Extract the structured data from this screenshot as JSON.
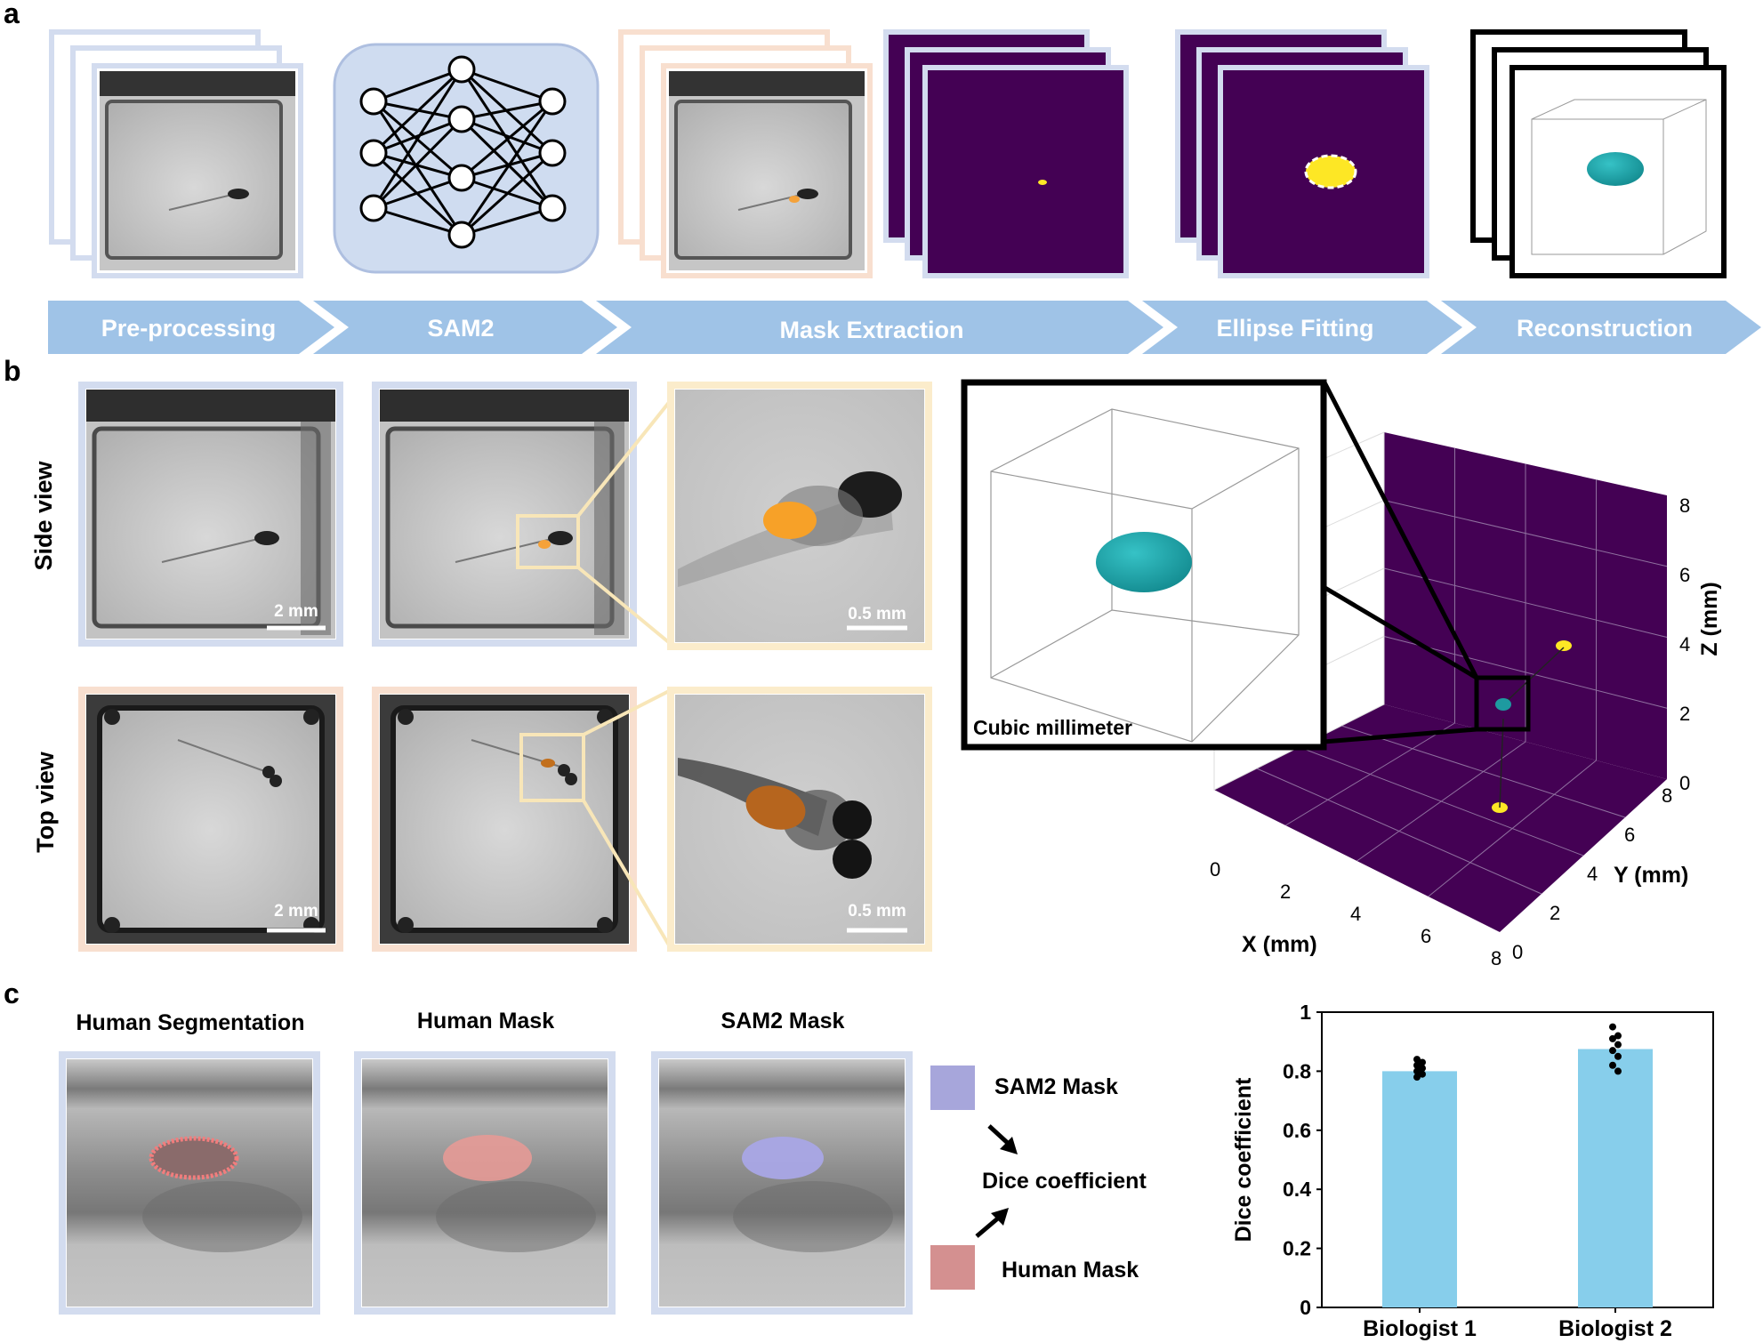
{
  "panels": {
    "a": "a",
    "b": "b",
    "c": "c"
  },
  "pipeline": {
    "steps": [
      "Pre-processing",
      "SAM2",
      "Mask Extraction",
      "Ellipse Fitting",
      "Reconstruction"
    ],
    "colors": {
      "arrow": "#9fc3e7",
      "frame_blue": "#d3dcef",
      "frame_orange": "#f8dfcf",
      "mask_bg": "#440154",
      "mask_yellow": "#fde725",
      "teal": "#1e9aa0",
      "nn_fill": "#cfdcf0"
    }
  },
  "panel_b": {
    "row_labels": {
      "side": "Side view",
      "top": "Top view"
    },
    "scale_bars": {
      "two_mm": "2 mm",
      "half_mm": "0.5 mm"
    },
    "inset_label": "Cubic millimeter",
    "axes": {
      "x_label": "X (mm)",
      "y_label": "Y (mm)",
      "z_label": "Z (mm)",
      "x_ticks": [
        "0",
        "2",
        "4",
        "6",
        "8"
      ],
      "y_ticks": [
        "0",
        "2",
        "4",
        "6",
        "8"
      ],
      "z_ticks": [
        "0",
        "2",
        "4",
        "6",
        "8"
      ]
    }
  },
  "panel_c": {
    "titles": {
      "human_seg": "Human Segmentation",
      "human_mask": "Human Mask",
      "sam2_mask": "SAM2 Mask"
    },
    "legend": {
      "sam2": "SAM2 Mask",
      "dice": "Dice coefficient",
      "human": "Human Mask"
    },
    "colors": {
      "sam2": "#a7a6db",
      "human": "#d49090",
      "bar": "#87ceeb"
    }
  },
  "chart_data": {
    "type": "bar",
    "categories": [
      "Biologist 1",
      "Biologist 2"
    ],
    "values": [
      0.8,
      0.875
    ],
    "points": [
      [
        0.84,
        0.83,
        0.82,
        0.81,
        0.8,
        0.79,
        0.78
      ],
      [
        0.95,
        0.92,
        0.91,
        0.89,
        0.87,
        0.85,
        0.82,
        0.8
      ]
    ],
    "ylabel": "Dice coefficient",
    "xlabel": "",
    "ylim": [
      0,
      1
    ],
    "yticks": [
      "0",
      "0.2",
      "0.4",
      "0.6",
      "0.8",
      "1"
    ]
  }
}
